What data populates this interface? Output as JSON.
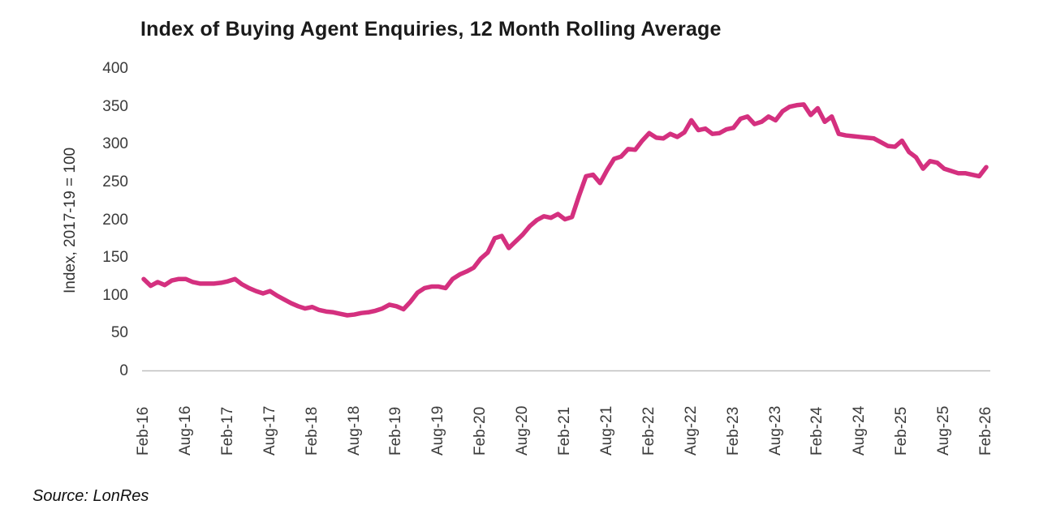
{
  "page": {
    "title": "Index of Buying Agent Enquiries, 12 Month Rolling Average",
    "source": "Source: LonRes"
  },
  "colors": {
    "line_pink": "#d4307f",
    "axis_line_gray": "#bfbfbf",
    "axis_text_gray": "#3a3a3a",
    "title_black": "#1a1a1a"
  },
  "chart_data": {
    "type": "line",
    "title": "Index of Buying Agent Enquiries, 12 Month Rolling Average",
    "xlabel": "",
    "ylabel": "Index, 2017-19 = 100",
    "ylim": [
      0,
      400
    ],
    "yticks": [
      400,
      350,
      300,
      250,
      200,
      150,
      100,
      50,
      0
    ],
    "x_tick_labels": [
      "Feb-16",
      "Aug-16",
      "Feb-17",
      "Aug-17",
      "Feb-18",
      "Aug-18",
      "Feb-19",
      "Aug-19",
      "Feb-20",
      "Aug-20",
      "Feb-21",
      "Aug-21",
      "Feb-22",
      "Aug-22",
      "Feb-23",
      "Aug-23",
      "Feb-24",
      "Aug-24",
      "Feb-25",
      "Aug-25",
      "Feb-26"
    ],
    "x_start": "Feb-16",
    "x_end": "Feb-26",
    "frequency": "monthly",
    "grid": false,
    "legend": "none",
    "line_color": "#d4307f",
    "series": [
      {
        "name": "index",
        "values": [
          122,
          113,
          118,
          114,
          120,
          122,
          122,
          118,
          116,
          116,
          116,
          117,
          119,
          122,
          115,
          110,
          106,
          103,
          106,
          100,
          95,
          90,
          86,
          83,
          85,
          81,
          79,
          78,
          76,
          74,
          75,
          77,
          78,
          80,
          83,
          88,
          86,
          82,
          92,
          104,
          110,
          112,
          112,
          110,
          122,
          128,
          132,
          137,
          149,
          157,
          176,
          179,
          163,
          172,
          181,
          192,
          200,
          205,
          203,
          208,
          201,
          204,
          232,
          258,
          260,
          249,
          266,
          281,
          284,
          294,
          293,
          305,
          315,
          309,
          308,
          314,
          310,
          316,
          332,
          319,
          321,
          314,
          315,
          320,
          322,
          334,
          337,
          327,
          330,
          337,
          332,
          344,
          350,
          352,
          353,
          339,
          348,
          330,
          337,
          314,
          312,
          311,
          310,
          309,
          308,
          303,
          298,
          297,
          305,
          290,
          283,
          268,
          278,
          276,
          268,
          265,
          262,
          262,
          260,
          258,
          270
        ]
      }
    ]
  }
}
